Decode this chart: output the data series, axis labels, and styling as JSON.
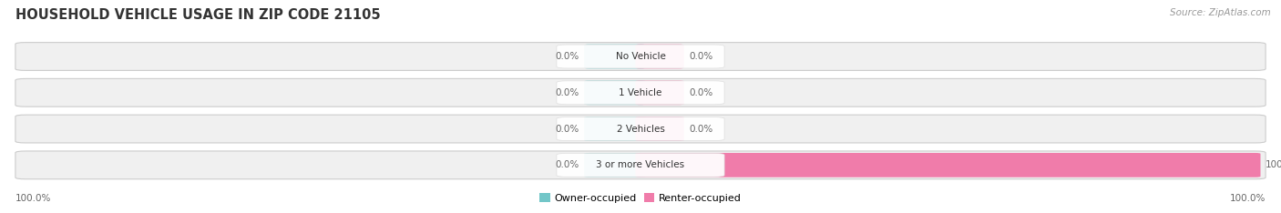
{
  "title": "HOUSEHOLD VEHICLE USAGE IN ZIP CODE 21105",
  "source": "Source: ZipAtlas.com",
  "categories": [
    "No Vehicle",
    "1 Vehicle",
    "2 Vehicles",
    "3 or more Vehicles"
  ],
  "owner_values": [
    0.0,
    0.0,
    0.0,
    0.0
  ],
  "renter_values": [
    0.0,
    0.0,
    0.0,
    100.0
  ],
  "owner_color": "#72c6c8",
  "renter_color": "#f07caa",
  "row_bg_color": "#f0f0f0",
  "row_border_color": "#e0e0e0",
  "owner_label": "Owner-occupied",
  "renter_label": "Renter-occupied",
  "left_label": "100.0%",
  "right_label": "100.0%",
  "figsize": [
    14.06,
    2.34
  ],
  "dpi": 100,
  "title_color": "#333333",
  "source_color": "#999999",
  "value_color": "#666666",
  "cat_label_color": "#333333"
}
